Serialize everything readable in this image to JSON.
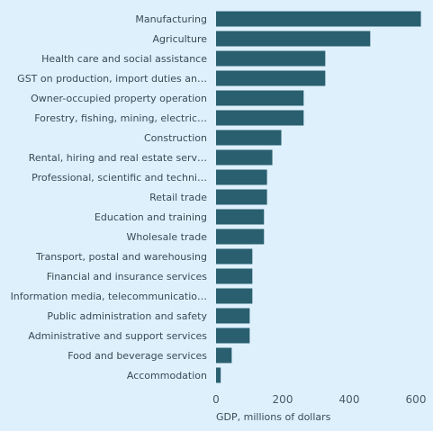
{
  "chart_data": {
    "type": "bar",
    "orientation": "horizontal",
    "categories": [
      "Manufacturing",
      "Agriculture",
      "Health care and social assistance",
      "GST on production, import duties an…",
      "Owner-occupied property operation",
      "Forestry, fishing, mining, electric…",
      "Construction",
      "Rental, hiring and real estate serv…",
      "Professional, scientific and techni…",
      "Retail trade",
      "Education and training",
      "Wholesale trade",
      "Transport, postal and warehousing",
      "Financial and insurance services",
      "Information media, telecommunicatio…",
      "Public administration and safety",
      "Administrative and support services",
      "Food and beverage services",
      "Accommodation"
    ],
    "values": [
      615,
      463,
      328,
      328,
      263,
      263,
      196,
      169,
      153,
      153,
      144,
      144,
      109,
      109,
      109,
      101,
      101,
      47,
      14
    ],
    "xlabel": "GDP, millions of dollars",
    "ylabel": "",
    "title": "",
    "xlim": [
      0,
      600
    ],
    "xticks": [
      0,
      200,
      400,
      600
    ],
    "bar_color": "#2a5f6f",
    "background_color": "#dff0fd",
    "grid": false,
    "legend": "none"
  }
}
